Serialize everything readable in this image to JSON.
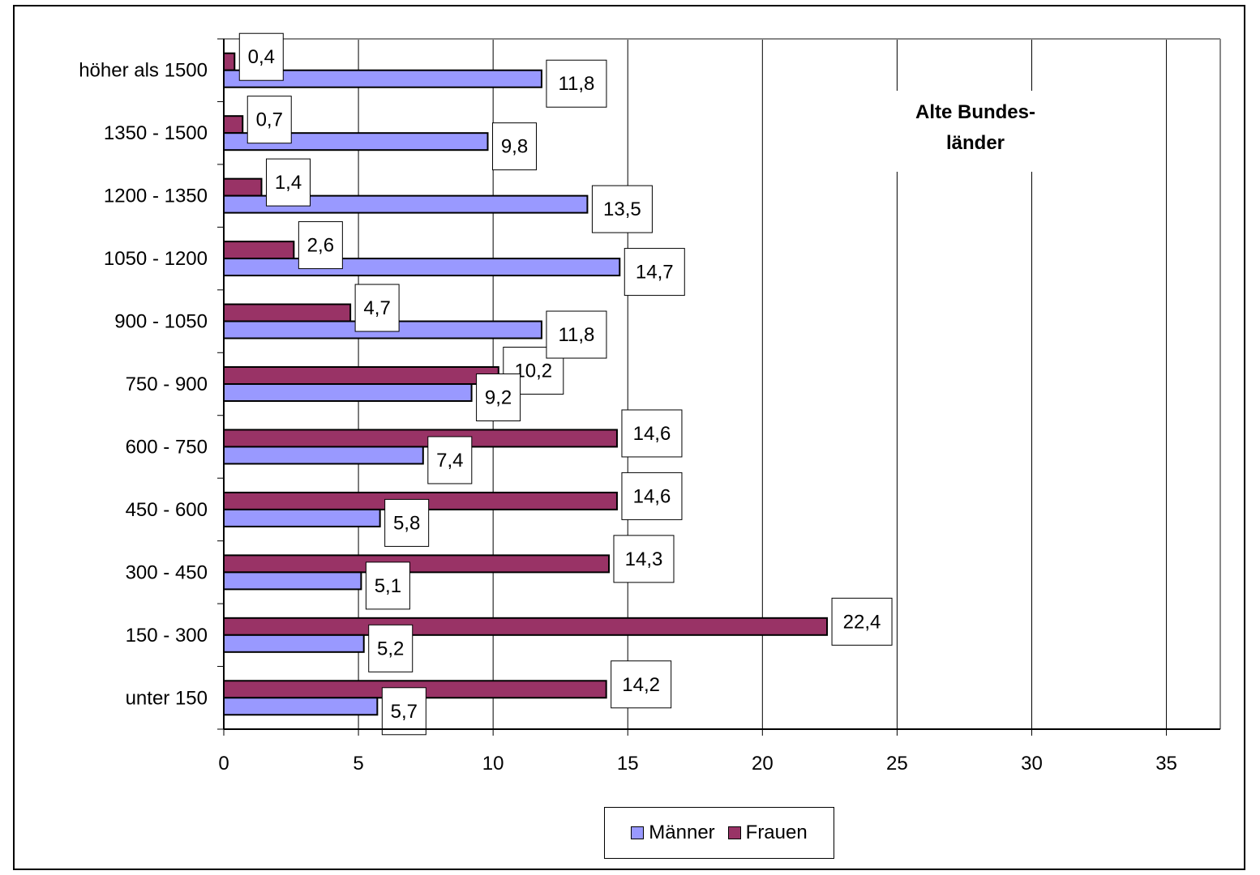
{
  "chart_data": {
    "type": "bar",
    "orientation": "horizontal",
    "annotation": [
      "Alte Bundes-",
      "länder"
    ],
    "categories": [
      "unter 150",
      "150 - 300",
      "300 - 450",
      "450 - 600",
      "600 - 750",
      "750 - 900",
      "900 - 1050",
      "1050 - 1200",
      "1200 - 1350",
      "1350 - 1500",
      "höher als 1500"
    ],
    "series": [
      {
        "name": "Männer",
        "color": "#9999ff",
        "values": [
          5.7,
          5.2,
          5.1,
          5.8,
          7.4,
          9.2,
          11.8,
          14.7,
          13.5,
          9.8,
          11.8
        ],
        "labels": [
          "5,7",
          "5,2",
          "5,1",
          "5,8",
          "7,4",
          "9,2",
          "11,8",
          "14,7",
          "13,5",
          "9,8",
          "11,8"
        ]
      },
      {
        "name": "Frauen",
        "color": "#993366",
        "values": [
          14.2,
          22.4,
          14.3,
          14.6,
          14.6,
          10.2,
          4.7,
          2.6,
          1.4,
          0.7,
          0.4
        ],
        "labels": [
          "14,2",
          "22,4",
          "14,3",
          "14,6",
          "14,6",
          "10,2",
          "4,7",
          "2,6",
          "1,4",
          "0,7",
          "0,4"
        ]
      }
    ],
    "xlim": [
      0,
      37
    ],
    "xticks": [
      0,
      5,
      10,
      15,
      20,
      25,
      30,
      35
    ],
    "xtick_labels": [
      "0",
      "5",
      "10",
      "15",
      "20",
      "25",
      "30",
      "35"
    ],
    "grid": "vertical",
    "legend": "bottom"
  }
}
